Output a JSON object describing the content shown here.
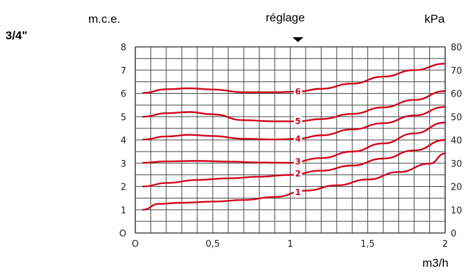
{
  "header": {
    "size_label": "3/4\"",
    "left_unit": "m.c.e.",
    "setting_label": "réglage",
    "right_unit": "kPa",
    "x_unit": "m3/h"
  },
  "colors": {
    "curve": "#d0021b",
    "grid": "#444444",
    "marker": "#000000"
  },
  "chart_data": {
    "type": "line",
    "title": "",
    "xlabel": "m3/h",
    "ylabel": "m.c.e.",
    "y2label": "kPa",
    "xlim": [
      0,
      2
    ],
    "ylim": [
      0,
      8
    ],
    "y2lim": [
      0,
      80
    ],
    "grid": true,
    "x_ticks": [
      {
        "value": 0,
        "label": "O"
      },
      {
        "value": 0.5,
        "label": "0,5"
      },
      {
        "value": 1,
        "label": "1"
      },
      {
        "value": 1.5,
        "label": "1,5"
      },
      {
        "value": 2,
        "label": "2"
      }
    ],
    "y_ticks": [
      {
        "value": 0,
        "label": "O"
      },
      {
        "value": 1,
        "label": "1"
      },
      {
        "value": 2,
        "label": "2"
      },
      {
        "value": 3,
        "label": "3"
      },
      {
        "value": 4,
        "label": "4"
      },
      {
        "value": 5,
        "label": "5"
      },
      {
        "value": 6,
        "label": "6"
      },
      {
        "value": 7,
        "label": "7"
      },
      {
        "value": 8,
        "label": "8"
      }
    ],
    "y2_ticks": [
      {
        "value": 0,
        "label": "0"
      },
      {
        "value": 10,
        "label": "10"
      },
      {
        "value": 20,
        "label": "20"
      },
      {
        "value": 30,
        "label": "30"
      },
      {
        "value": 40,
        "label": "40"
      },
      {
        "value": 50,
        "label": "50"
      },
      {
        "value": 60,
        "label": "60"
      },
      {
        "value": 70,
        "label": "70"
      },
      {
        "value": 80,
        "label": "80"
      }
    ],
    "setting_marker_x": 1.05,
    "series": [
      {
        "name": "1",
        "x": [
          0.05,
          0.15,
          0.3,
          0.5,
          0.7,
          0.9,
          1.1,
          1.3,
          1.5,
          1.7,
          1.9,
          2.0
        ],
        "y": [
          1.0,
          1.25,
          1.3,
          1.35,
          1.42,
          1.55,
          1.82,
          2.05,
          2.3,
          2.62,
          2.98,
          3.42
        ]
      },
      {
        "name": "2",
        "x": [
          0.05,
          0.2,
          0.4,
          0.6,
          0.8,
          1.0,
          1.2,
          1.4,
          1.6,
          1.8,
          2.0
        ],
        "y": [
          2.0,
          2.15,
          2.28,
          2.35,
          2.42,
          2.5,
          2.68,
          2.9,
          3.2,
          3.55,
          4.0
        ]
      },
      {
        "name": "3",
        "x": [
          0.05,
          0.2,
          0.4,
          0.6,
          0.8,
          1.0,
          1.2,
          1.4,
          1.6,
          1.8,
          2.0
        ],
        "y": [
          3.02,
          3.08,
          3.1,
          3.07,
          3.03,
          3.02,
          3.22,
          3.5,
          3.85,
          4.28,
          4.75
        ]
      },
      {
        "name": "4",
        "x": [
          0.05,
          0.2,
          0.35,
          0.5,
          0.7,
          0.9,
          1.05,
          1.2,
          1.4,
          1.6,
          1.8,
          2.0
        ],
        "y": [
          4.02,
          4.15,
          4.22,
          4.17,
          4.05,
          4.02,
          4.05,
          4.2,
          4.45,
          4.72,
          5.05,
          5.42
        ]
      },
      {
        "name": "5",
        "x": [
          0.05,
          0.2,
          0.35,
          0.5,
          0.7,
          0.9,
          1.05,
          1.2,
          1.4,
          1.6,
          1.8,
          2.0
        ],
        "y": [
          5.0,
          5.15,
          5.2,
          5.1,
          4.85,
          4.8,
          4.8,
          4.9,
          5.12,
          5.4,
          5.72,
          6.1
        ]
      },
      {
        "name": "6",
        "x": [
          0.05,
          0.2,
          0.35,
          0.5,
          0.7,
          0.9,
          1.05,
          1.2,
          1.4,
          1.6,
          1.8,
          2.0
        ],
        "y": [
          6.02,
          6.18,
          6.22,
          6.17,
          6.05,
          6.05,
          6.08,
          6.2,
          6.42,
          6.72,
          7.0,
          7.28
        ]
      }
    ]
  }
}
